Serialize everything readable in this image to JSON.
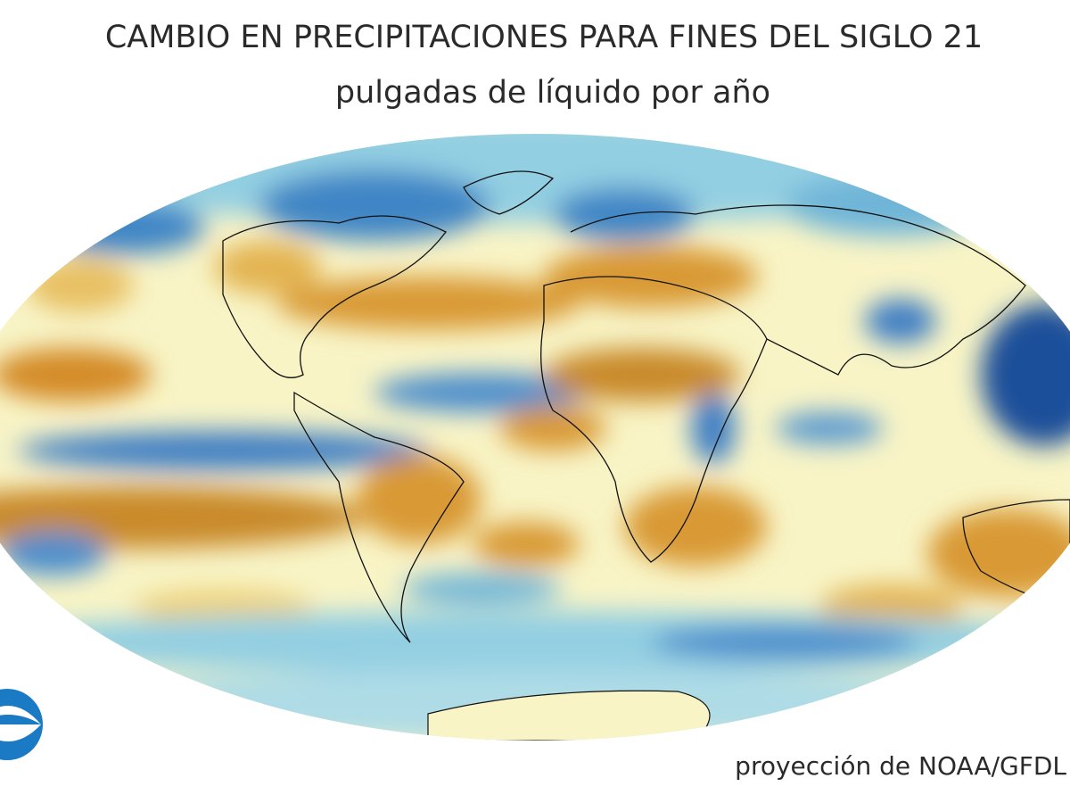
{
  "header": {
    "title": "CAMBIO EN PRECIPITACIONES PARA FINES DEL SIGLO 21",
    "subtitle": "pulgadas de líquido por año"
  },
  "footer": {
    "credit": "proyección de NOAA/GFDL"
  }
}
